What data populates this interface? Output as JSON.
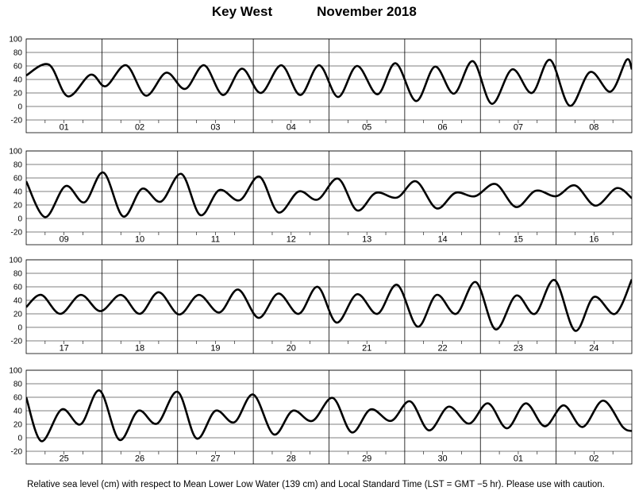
{
  "title": {
    "location": "Key West",
    "period": "November   2018"
  },
  "caption": "Relative sea level (cm) with respect to Mean Lower Low Water (139 cm) and Local Standard Time (LST = GMT −5 hr). Please use with caution.",
  "chart_data": {
    "type": "line",
    "ylim": [
      -20,
      100
    ],
    "yticks": [
      -20,
      0,
      20,
      40,
      60,
      80,
      100
    ],
    "grid": true,
    "ylabel": "",
    "xlabel": "",
    "panels": [
      {
        "days": [
          "01",
          "02",
          "03",
          "04",
          "05",
          "06",
          "07",
          "08"
        ],
        "series": {
          "x": [
            0.0,
            0.3,
            0.55,
            0.85,
            1.05,
            1.32,
            1.58,
            1.85,
            2.1,
            2.35,
            2.6,
            2.85,
            3.1,
            3.37,
            3.62,
            3.87,
            4.12,
            4.37,
            4.64,
            4.88,
            5.15,
            5.4,
            5.65,
            5.9,
            6.15,
            6.42,
            6.68,
            6.92,
            7.18,
            7.45,
            7.72,
            7.93,
            8.0
          ],
          "y": [
            46,
            62,
            15,
            47,
            30,
            61,
            16,
            50,
            26,
            61,
            17,
            56,
            20,
            61,
            17,
            61,
            14,
            60,
            18,
            64,
            8,
            59,
            19,
            67,
            4,
            55,
            20,
            69,
            1,
            51,
            22,
            69,
            55
          ]
        }
      },
      {
        "days": [
          "09",
          "10",
          "11",
          "12",
          "13",
          "14",
          "15",
          "16"
        ],
        "series": {
          "x": [
            0.0,
            0.25,
            0.52,
            0.77,
            1.02,
            1.28,
            1.53,
            1.78,
            2.05,
            2.3,
            2.55,
            2.82,
            3.08,
            3.33,
            3.6,
            3.85,
            4.12,
            4.37,
            4.62,
            4.9,
            5.15,
            5.42,
            5.67,
            5.93,
            6.2,
            6.47,
            6.73,
            7.0,
            7.25,
            7.52,
            7.8,
            8.0
          ],
          "y": [
            55,
            2,
            48,
            24,
            68,
            3,
            44,
            25,
            66,
            5,
            42,
            27,
            62,
            9,
            40,
            28,
            59,
            12,
            38,
            31,
            55,
            15,
            38,
            33,
            51,
            17,
            41,
            33,
            49,
            19,
            45,
            30
          ]
        }
      },
      {
        "days": [
          "17",
          "18",
          "19",
          "20",
          "21",
          "22",
          "23",
          "24"
        ],
        "series": {
          "x": [
            0.0,
            0.2,
            0.45,
            0.72,
            0.98,
            1.25,
            1.5,
            1.75,
            2.02,
            2.28,
            2.55,
            2.8,
            3.07,
            3.33,
            3.6,
            3.85,
            4.1,
            4.37,
            4.64,
            4.9,
            5.17,
            5.42,
            5.68,
            5.94,
            6.2,
            6.47,
            6.72,
            6.98,
            7.25,
            7.5,
            7.78,
            8.0
          ],
          "y": [
            30,
            48,
            20,
            48,
            24,
            48,
            20,
            52,
            19,
            48,
            22,
            56,
            14,
            50,
            20,
            60,
            7,
            49,
            20,
            63,
            1,
            48,
            20,
            67,
            -3,
            47,
            20,
            70,
            -5,
            45,
            20,
            71
          ]
        }
      },
      {
        "days": [
          "25",
          "26",
          "27",
          "28",
          "29",
          "30",
          "01",
          "02"
        ],
        "series": {
          "x": [
            0.0,
            0.2,
            0.47,
            0.72,
            0.97,
            1.23,
            1.48,
            1.73,
            2.0,
            2.25,
            2.5,
            2.75,
            3.0,
            3.27,
            3.52,
            3.78,
            4.05,
            4.3,
            4.55,
            4.82,
            5.07,
            5.32,
            5.58,
            5.85,
            6.1,
            6.35,
            6.6,
            6.85,
            7.1,
            7.35,
            7.62,
            7.88,
            8.0
          ],
          "y": [
            60,
            -5,
            42,
            20,
            70,
            -3,
            40,
            21,
            68,
            -1,
            40,
            23,
            64,
            5,
            40,
            25,
            59,
            8,
            42,
            25,
            54,
            11,
            46,
            21,
            51,
            14,
            51,
            17,
            48,
            16,
            55,
            16,
            10
          ]
        }
      }
    ]
  }
}
